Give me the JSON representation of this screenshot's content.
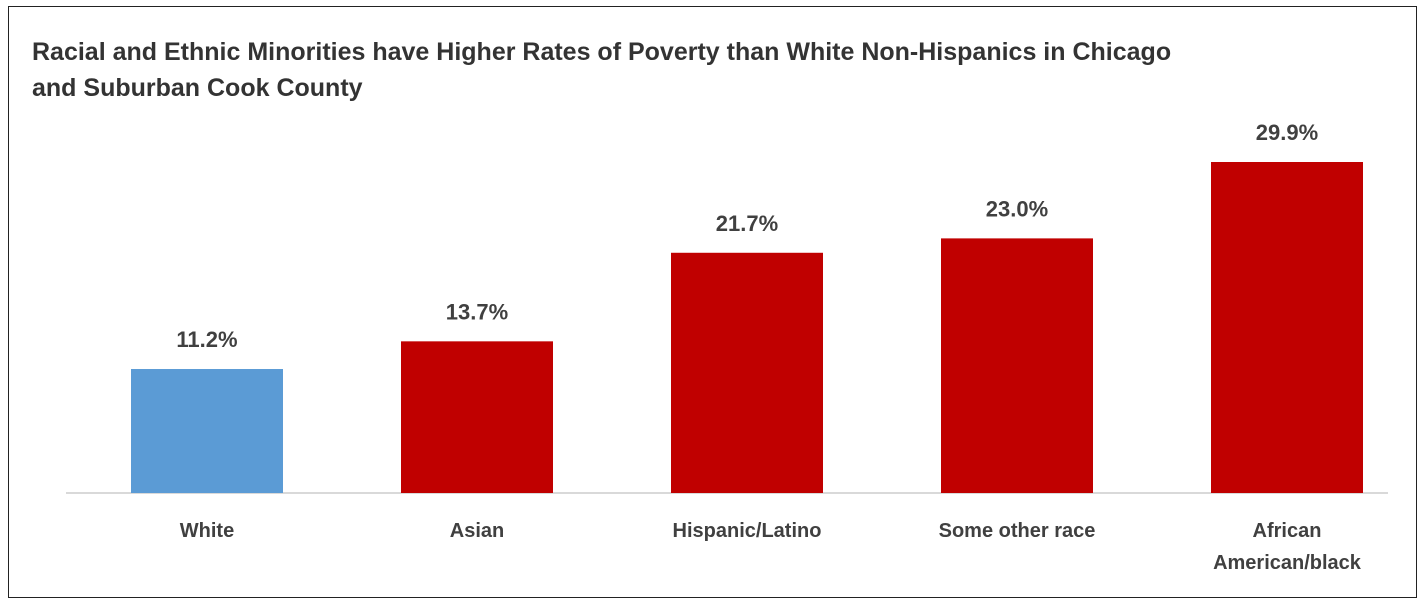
{
  "chart_data": {
    "type": "bar",
    "title": "Racial and Ethnic Minorities have Higher Rates of Poverty than White Non-Hispanics in Chicago and Suburban Cook County",
    "categories": [
      "White",
      "Asian",
      "Hispanic/Latino",
      "Some other race",
      "African American/black"
    ],
    "category_lines": [
      [
        "White"
      ],
      [
        "Asian"
      ],
      [
        "Hispanic/Latino"
      ],
      [
        "Some other race"
      ],
      [
        "African",
        "American/black"
      ]
    ],
    "values": [
      11.2,
      13.7,
      21.7,
      23.0,
      29.9
    ],
    "value_labels": [
      "11.2%",
      "13.7%",
      "21.7%",
      "23.0%",
      "29.9%"
    ],
    "bar_colors": [
      "#5B9BD5",
      "#C00000",
      "#C00000",
      "#C00000",
      "#C00000"
    ],
    "ylim": [
      0,
      32
    ],
    "grid": false,
    "legend": "none",
    "xlabel": "",
    "ylabel": ""
  }
}
